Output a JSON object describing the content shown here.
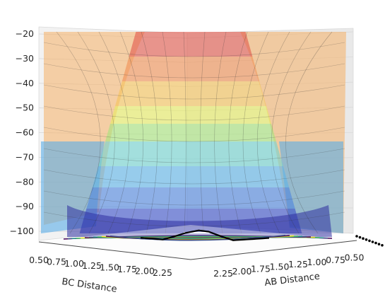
{
  "chart_data": {
    "type": "surface3d",
    "title": "",
    "xlabel": "AB Distance",
    "ylabel": "BC Distance",
    "zlabel": "",
    "z_ticks": [
      -100,
      -90,
      -80,
      -70,
      -60,
      -50,
      -40,
      -30,
      -20
    ],
    "ab_ticks": [
      "0.50",
      "0.75",
      "1.00",
      "1.25",
      "1.50",
      "1.75",
      "2.00",
      "2.25"
    ],
    "bc_ticks": [
      "0.50",
      "0.75",
      "1.00",
      "1.25",
      "1.50",
      "1.75",
      "2.00",
      "2.25"
    ],
    "zlim": [
      -105,
      -19
    ],
    "ab_range": [
      0.5,
      2.3
    ],
    "bc_range": [
      0.5,
      2.3
    ],
    "colormap": "jet",
    "contour_colormap": "viridis",
    "surface_alpha": 0.45,
    "band_colors": [
      "#30308f",
      "#3b53c9",
      "#4f86de",
      "#5fb4e8",
      "#73d4d0",
      "#a8e37d",
      "#e6ec62",
      "#f6c35a",
      "#f19255",
      "#e25a4d"
    ],
    "trajectory": {
      "label": "",
      "color": "#000000",
      "ab": [
        2.0,
        1.8,
        1.6,
        1.4,
        1.2,
        1.0,
        0.9,
        0.82,
        0.78,
        0.75,
        0.74
      ],
      "bc": [
        0.74,
        0.76,
        0.78,
        0.8,
        0.84,
        0.9,
        1.0,
        1.2,
        1.4,
        1.8,
        2.2
      ],
      "z": [
        -101.5,
        -101.8,
        -102.2,
        -101.0,
        -99.5,
        -98.5,
        -99.0,
        -101.0,
        -102.5,
        -102.0,
        -101.5
      ]
    }
  }
}
